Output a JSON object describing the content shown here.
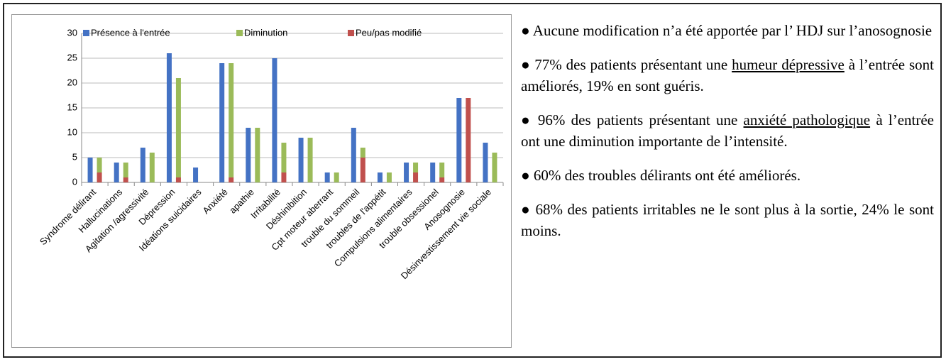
{
  "chart_data": {
    "type": "bar",
    "categories": [
      "Syndrome délirant",
      "Hallucinations",
      "Agitation /agressivité",
      "Dépression",
      "Idéations suicidaires",
      "Anxiété",
      "apathie",
      "Irritabilité",
      "Déshinibition",
      "Cpt moteur aberrant",
      "trouble du sommeil",
      "troubles de l'appétit",
      "Compulsions alimentaires",
      "trouble obsessionel",
      "Anosognosie",
      "Désinvestissement vie sociale"
    ],
    "series": [
      {
        "name": "Présence à l'entrée",
        "color": "#4472c4",
        "values": [
          5,
          4,
          7,
          26,
          3,
          24,
          11,
          25,
          9,
          2,
          11,
          2,
          4,
          4,
          17,
          8
        ]
      },
      {
        "name": "Diminution",
        "color": "#9bbb59",
        "stack": "b",
        "values": [
          3,
          3,
          6,
          20,
          0,
          23,
          11,
          6,
          9,
          2,
          2,
          2,
          2,
          3,
          0,
          6
        ]
      },
      {
        "name": "Peu/pas modifié",
        "color": "#c0504d",
        "stack": "b",
        "values": [
          2,
          1,
          0,
          1,
          0,
          1,
          0,
          2,
          0,
          0,
          5,
          0,
          2,
          1,
          17,
          0
        ]
      }
    ],
    "ylim": [
      0,
      30
    ],
    "yticks": [
      0,
      5,
      10,
      15,
      20,
      25,
      30
    ],
    "grid": true,
    "legend": "top"
  },
  "notes": [
    [
      {
        "text": "● Aucune modification n’a été apportée par l’ HDJ sur l’anosognosie"
      }
    ],
    [
      {
        "text": "● 77% des patients  présentant une "
      },
      {
        "text": "humeur dépressive",
        "underline": true
      },
      {
        "text": " à l’entrée sont améliorés, 19% en sont guéris."
      }
    ],
    [
      {
        "text": "● 96% des patients présentant une "
      },
      {
        "text": "anxiété pathologique",
        "underline": true
      },
      {
        "text": " à l’entrée ont une diminution importante de l’intensité."
      }
    ],
    [
      {
        "text": "● 60% des troubles délirants ont été améliorés."
      }
    ],
    [
      {
        "text": "● 68% des patients irritables ne le sont plus à la sortie, 24% le sont moins."
      }
    ]
  ]
}
